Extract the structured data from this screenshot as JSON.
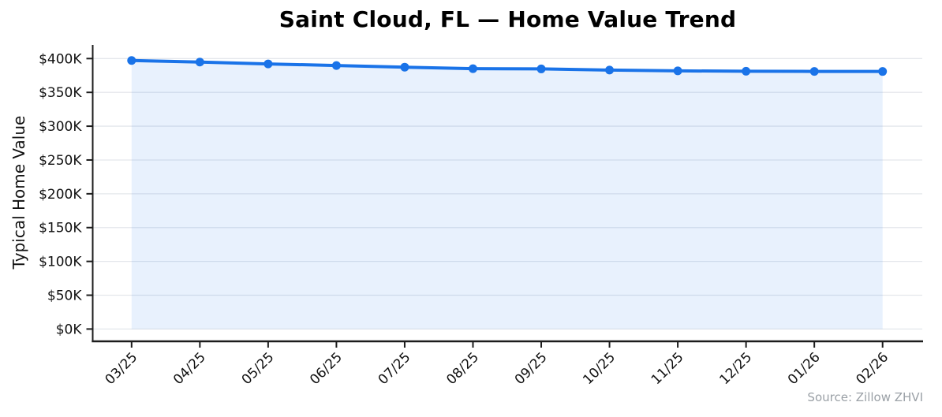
{
  "chart_data": {
    "type": "line",
    "title": "Saint Cloud, FL — Home Value Trend",
    "ylabel": "Typical Home Value",
    "xlabel": "",
    "source": "Source: Zillow ZHVI",
    "categories": [
      "03/25",
      "04/25",
      "05/25",
      "06/25",
      "07/25",
      "08/25",
      "09/25",
      "10/25",
      "11/25",
      "12/25",
      "01/26",
      "02/26"
    ],
    "values": [
      397200,
      394800,
      392100,
      389700,
      387300,
      385100,
      384700,
      383000,
      381800,
      381300,
      381000,
      380900
    ],
    "ylim": [
      0,
      420000
    ],
    "ytick_values": [
      0,
      50000,
      100000,
      150000,
      200000,
      250000,
      300000,
      350000,
      400000
    ],
    "ytick_labels": [
      "$0K",
      "$50K",
      "$100K",
      "$150K",
      "$200K",
      "$250K",
      "$300K",
      "$350K",
      "$400K"
    ],
    "grid": "horizontal",
    "legend": "none",
    "area_fill": true,
    "marker": "circle",
    "colors": {
      "line": "#1a73e8",
      "marker": "#1a73e8",
      "area_fill": "rgba(26,115,232,0.10)",
      "grid": "#e4e7ec",
      "axis": "#1c1c1c",
      "tick_text": "#111111",
      "title_text": "#000000",
      "source_text": "#9aa0a6"
    }
  }
}
